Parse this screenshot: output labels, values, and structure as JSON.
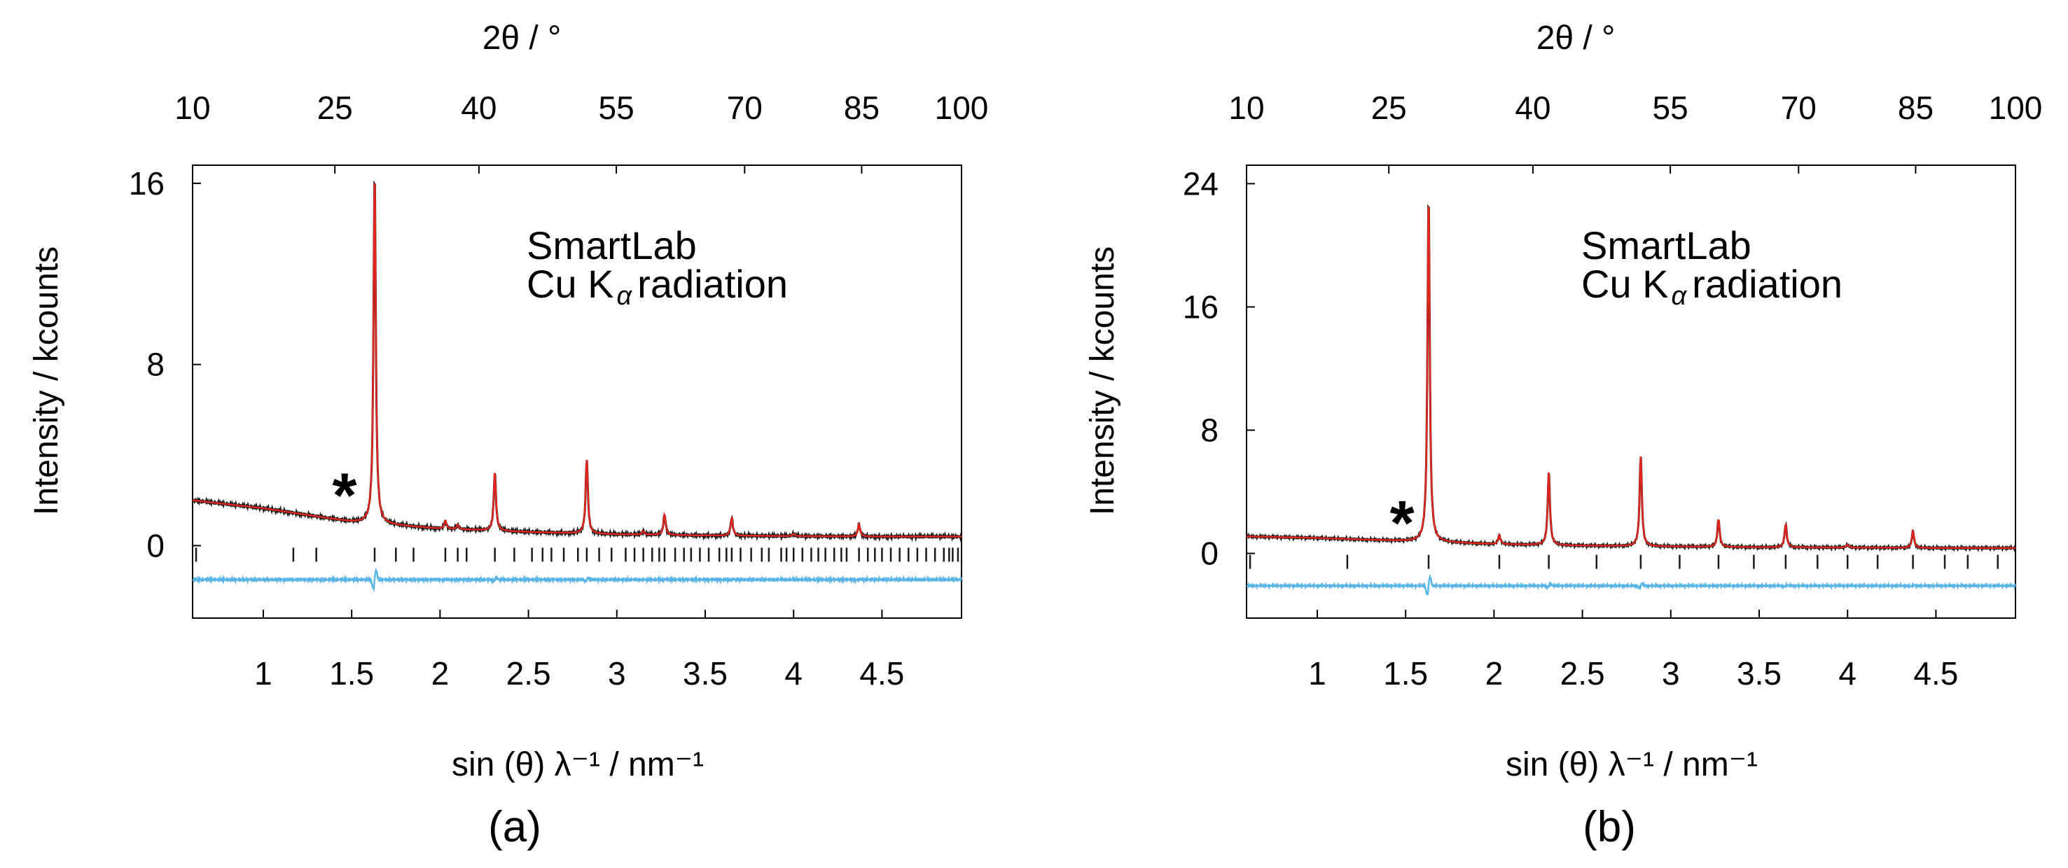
{
  "colors": {
    "observed": "#1a1a1a",
    "calculated": "#e0261f",
    "difference": "#58b4e6",
    "bragg_ticks": "#1a1a1a",
    "frame": "#000000"
  },
  "chart_data": [
    {
      "id": "a",
      "type": "line",
      "panel_label": "(a)",
      "title": "",
      "xlabel": "sin (θ) λ⁻¹ / nm⁻¹",
      "ylabel": "Intensity / kcounts",
      "top_xlabel": "2θ / °",
      "xlim": [
        0.6,
        4.95
      ],
      "ylim": [
        -3.2,
        16.8
      ],
      "x_ticks": [
        1,
        1.5,
        2,
        2.5,
        3,
        3.5,
        4,
        4.5
      ],
      "x_tick_labels": [
        "1",
        "1.5",
        "2",
        "2.5",
        "3",
        "3.5",
        "4",
        "4.5"
      ],
      "y_ticks": [
        0,
        8,
        16
      ],
      "y_tick_labels": [
        "0",
        "8",
        "16"
      ],
      "top_ticks_2theta": [
        10,
        25,
        40,
        55,
        70,
        85,
        100
      ],
      "top_tick_labels": [
        "10",
        "25",
        "40",
        "55",
        "70",
        "85",
        "100"
      ],
      "annotation": [
        "SmartLab",
        "Cu K",
        "α",
        "radiation"
      ],
      "impurity_marker": {
        "label": "*",
        "x": 1.46,
        "y": 2.5
      },
      "background": {
        "x": [
          0.6,
          1.0,
          1.5,
          2.0,
          2.5,
          3.0,
          3.5,
          4.0,
          4.5,
          4.95
        ],
        "y": [
          2.0,
          1.65,
          1.05,
          0.75,
          0.6,
          0.5,
          0.45,
          0.42,
          0.4,
          0.4
        ]
      },
      "peaks": [
        {
          "x": 1.63,
          "height": 15.6
        },
        {
          "x": 2.03,
          "height": 0.35
        },
        {
          "x": 2.1,
          "height": 0.2
        },
        {
          "x": 2.31,
          "height": 2.6
        },
        {
          "x": 2.83,
          "height": 3.3
        },
        {
          "x": 3.15,
          "height": 0.15
        },
        {
          "x": 3.27,
          "height": 0.9
        },
        {
          "x": 3.65,
          "height": 0.8
        },
        {
          "x": 4.0,
          "height": 0.1
        },
        {
          "x": 4.37,
          "height": 0.55
        }
      ],
      "difference_offset": -1.5,
      "tick_row_y": -0.4,
      "bragg_ticks": [
        0.62,
        1.17,
        1.3,
        1.63,
        1.75,
        1.85,
        2.03,
        2.1,
        2.15,
        2.31,
        2.42,
        2.52,
        2.58,
        2.63,
        2.7,
        2.78,
        2.83,
        2.9,
        2.97,
        3.05,
        3.1,
        3.15,
        3.2,
        3.24,
        3.27,
        3.33,
        3.38,
        3.42,
        3.47,
        3.52,
        3.58,
        3.62,
        3.65,
        3.7,
        3.76,
        3.82,
        3.86,
        3.93,
        3.96,
        4.0,
        4.05,
        4.1,
        4.14,
        4.18,
        4.23,
        4.27,
        4.3,
        4.37,
        4.42,
        4.46,
        4.5,
        4.55,
        4.6,
        4.65,
        4.7,
        4.75,
        4.8,
        4.85,
        4.88,
        4.9,
        4.93
      ]
    },
    {
      "id": "b",
      "type": "line",
      "panel_label": "(b)",
      "title": "",
      "xlabel": "sin (θ) λ⁻¹ / nm⁻¹",
      "ylabel": "Intensity / kcounts",
      "top_xlabel": "2θ / °",
      "xlim": [
        0.6,
        4.95
      ],
      "ylim": [
        -4.2,
        25.2
      ],
      "x_ticks": [
        1,
        1.5,
        2,
        2.5,
        3,
        3.5,
        4,
        4.5
      ],
      "x_tick_labels": [
        "1",
        "1.5",
        "2",
        "2.5",
        "3",
        "3.5",
        "4",
        "4.5"
      ],
      "y_ticks": [
        0,
        8,
        16,
        24
      ],
      "y_tick_labels": [
        "0",
        "8",
        "16",
        "24"
      ],
      "top_ticks_2theta": [
        10,
        25,
        40,
        55,
        70,
        85,
        100
      ],
      "top_tick_labels": [
        "10",
        "25",
        "40",
        "55",
        "70",
        "85",
        "100"
      ],
      "annotation": [
        "SmartLab",
        "Cu K",
        "α",
        "radiation"
      ],
      "impurity_marker": {
        "label": "*",
        "x": 1.48,
        "y": 2.4
      },
      "background": {
        "x": [
          0.6,
          1.0,
          1.5,
          2.0,
          2.5,
          3.0,
          3.5,
          4.0,
          4.5,
          4.95
        ],
        "y": [
          1.1,
          1.0,
          0.8,
          0.6,
          0.5,
          0.45,
          0.4,
          0.38,
          0.35,
          0.35
        ]
      },
      "peaks": [
        {
          "x": 1.63,
          "height": 22.6
        },
        {
          "x": 2.03,
          "height": 0.6
        },
        {
          "x": 2.31,
          "height": 4.8
        },
        {
          "x": 2.83,
          "height": 5.9
        },
        {
          "x": 3.27,
          "height": 1.8
        },
        {
          "x": 3.65,
          "height": 1.5
        },
        {
          "x": 4.0,
          "height": 0.2
        },
        {
          "x": 4.37,
          "height": 1.1
        }
      ],
      "difference_offset": -2.1,
      "tick_row_y": -0.55,
      "bragg_ticks": [
        0.62,
        1.17,
        1.63,
        2.03,
        2.31,
        2.58,
        2.83,
        3.05,
        3.27,
        3.47,
        3.65,
        3.83,
        4.0,
        4.17,
        4.37,
        4.55,
        4.68,
        4.85
      ]
    }
  ]
}
